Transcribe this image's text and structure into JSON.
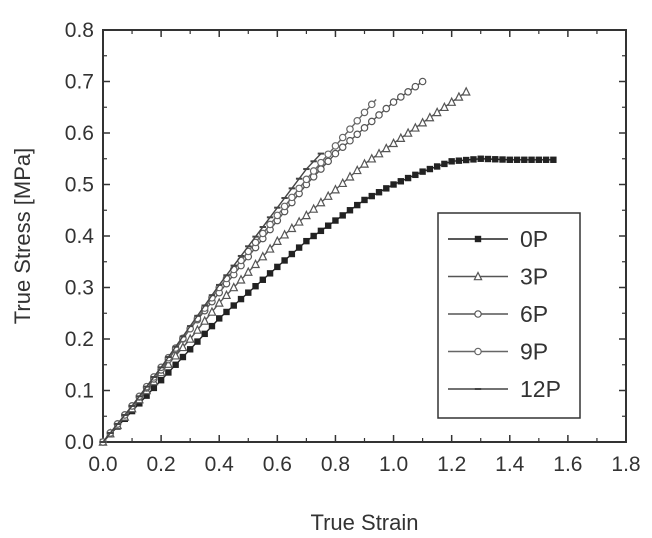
{
  "chart_data": {
    "type": "line",
    "xlabel": "True Strain",
    "ylabel": "True Stress [MPa]",
    "xlim": [
      0.0,
      1.8
    ],
    "ylim": [
      0.0,
      0.8
    ],
    "x_ticks": [
      "0.0",
      "0.2",
      "0.4",
      "0.6",
      "0.8",
      "1.0",
      "1.2",
      "1.4",
      "1.6",
      "1.8"
    ],
    "y_ticks": [
      "0.0",
      "0.1",
      "0.2",
      "0.3",
      "0.4",
      "0.5",
      "0.6",
      "0.7",
      "0.8"
    ],
    "grid": false,
    "legend_position": "right-middle",
    "series": [
      {
        "name": "0P",
        "marker": "filled-square",
        "color": "#222222",
        "x": [
          0.0,
          0.1,
          0.2,
          0.3,
          0.4,
          0.5,
          0.6,
          0.7,
          0.8,
          0.9,
          1.0,
          1.1,
          1.2,
          1.3,
          1.4,
          1.55
        ],
        "y": [
          0.0,
          0.06,
          0.12,
          0.18,
          0.24,
          0.29,
          0.34,
          0.39,
          0.43,
          0.47,
          0.5,
          0.525,
          0.545,
          0.55,
          0.548,
          0.548
        ]
      },
      {
        "name": "3P",
        "marker": "open-triangle",
        "color": "#555555",
        "x": [
          0.0,
          0.1,
          0.2,
          0.3,
          0.4,
          0.5,
          0.6,
          0.7,
          0.8,
          0.9,
          1.0,
          1.1,
          1.2,
          1.25
        ],
        "y": [
          0.0,
          0.065,
          0.135,
          0.2,
          0.27,
          0.33,
          0.39,
          0.44,
          0.49,
          0.54,
          0.58,
          0.62,
          0.66,
          0.68
        ]
      },
      {
        "name": "6P",
        "marker": "open-circle",
        "color": "#555555",
        "x": [
          0.0,
          0.1,
          0.2,
          0.3,
          0.4,
          0.5,
          0.6,
          0.7,
          0.8,
          0.9,
          1.0,
          1.1
        ],
        "y": [
          0.0,
          0.07,
          0.14,
          0.22,
          0.29,
          0.36,
          0.43,
          0.5,
          0.56,
          0.61,
          0.66,
          0.7
        ]
      },
      {
        "name": "9P",
        "marker": "open-circle",
        "color": "#666666",
        "x": [
          0.0,
          0.1,
          0.2,
          0.3,
          0.4,
          0.5,
          0.6,
          0.7,
          0.8,
          0.9,
          0.94
        ],
        "y": [
          0.0,
          0.07,
          0.145,
          0.22,
          0.3,
          0.37,
          0.44,
          0.51,
          0.575,
          0.64,
          0.665
        ]
      },
      {
        "name": "12P",
        "marker": "dash",
        "color": "#444444",
        "x": [
          0.0,
          0.1,
          0.2,
          0.3,
          0.4,
          0.5,
          0.6,
          0.7,
          0.75
        ],
        "y": [
          0.0,
          0.07,
          0.145,
          0.225,
          0.305,
          0.38,
          0.455,
          0.53,
          0.56
        ]
      }
    ]
  }
}
